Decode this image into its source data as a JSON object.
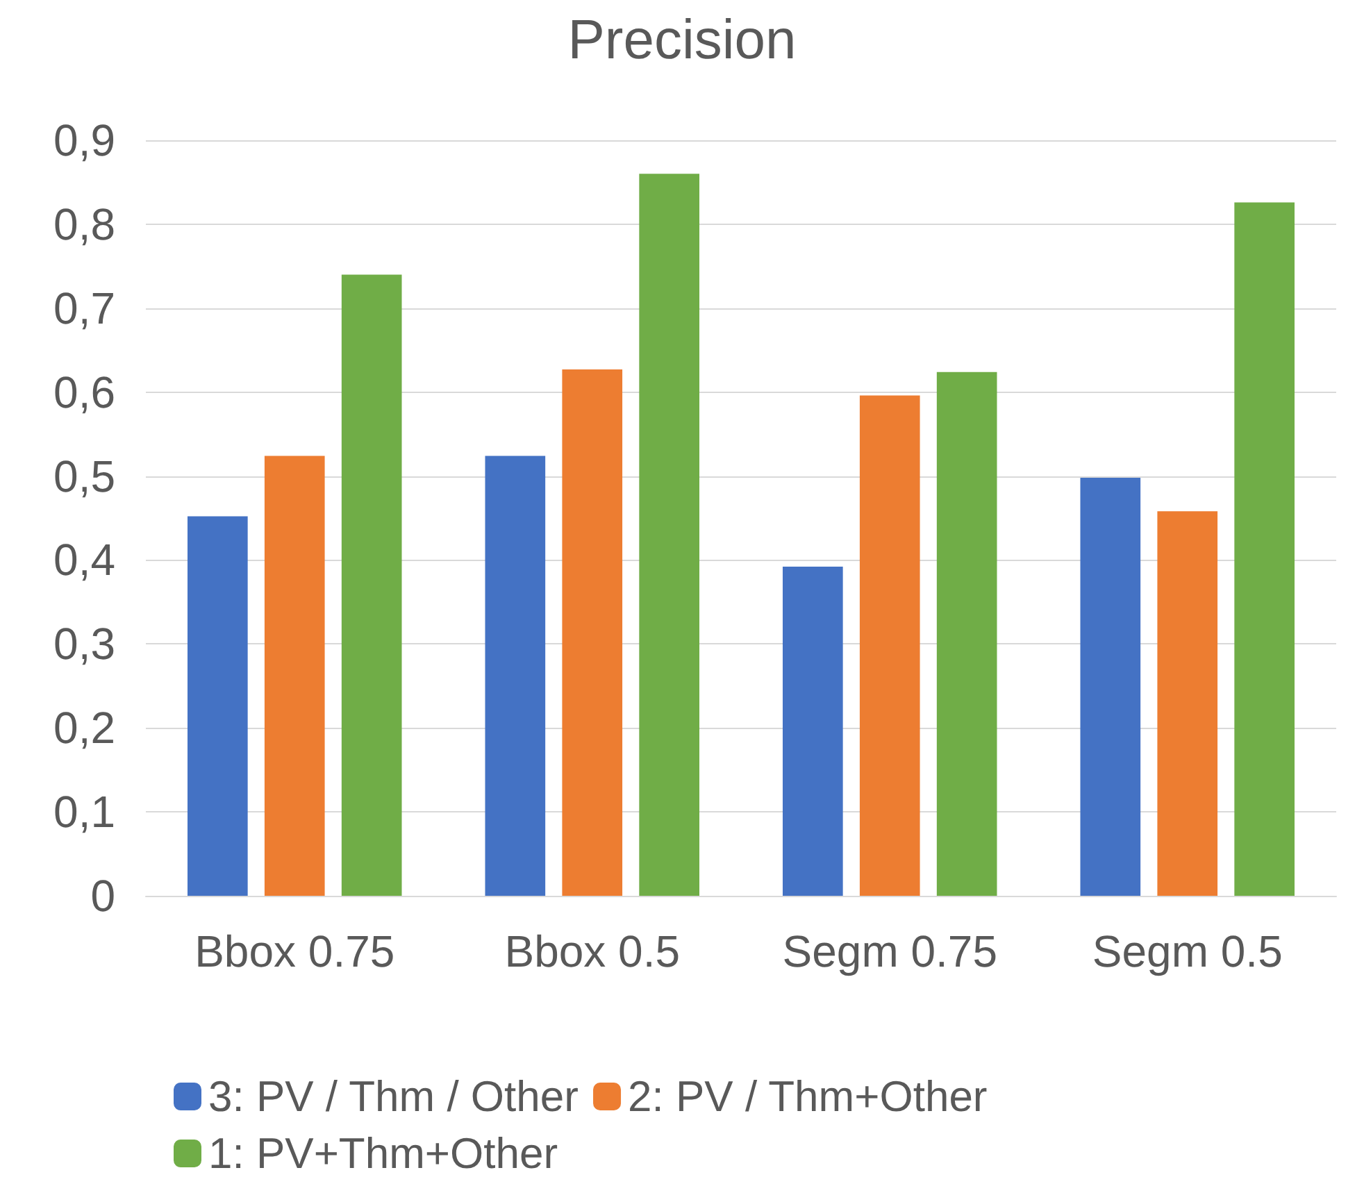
{
  "chart_data": {
    "type": "bar",
    "title": "Precision",
    "categories": [
      "Bbox 0.75",
      "Bbox 0.5",
      "Segm 0.75",
      "Segm 0.5"
    ],
    "series": [
      {
        "name": "3: PV / Thm / Other",
        "color": "#4472c4",
        "values": [
          0.452,
          0.524,
          0.392,
          0.498
        ]
      },
      {
        "name": "2: PV / Thm+Other",
        "color": "#ed7d31",
        "values": [
          0.524,
          0.627,
          0.596,
          0.458
        ]
      },
      {
        "name": "1: PV+Thm+Other",
        "color": "#70ad47",
        "values": [
          0.74,
          0.86,
          0.624,
          0.826
        ]
      }
    ],
    "ylim": [
      0,
      0.9
    ],
    "yticks": [
      {
        "value": 0,
        "label": "0"
      },
      {
        "value": 0.1,
        "label": "0,1"
      },
      {
        "value": 0.2,
        "label": "0,2"
      },
      {
        "value": 0.3,
        "label": "0,3"
      },
      {
        "value": 0.4,
        "label": "0,4"
      },
      {
        "value": 0.5,
        "label": "0,5"
      },
      {
        "value": 0.6,
        "label": "0,6"
      },
      {
        "value": 0.7,
        "label": "0,7"
      },
      {
        "value": 0.8,
        "label": "0,8"
      },
      {
        "value": 0.9,
        "label": "0,9"
      }
    ],
    "grid": "y",
    "legend": "bottom"
  }
}
